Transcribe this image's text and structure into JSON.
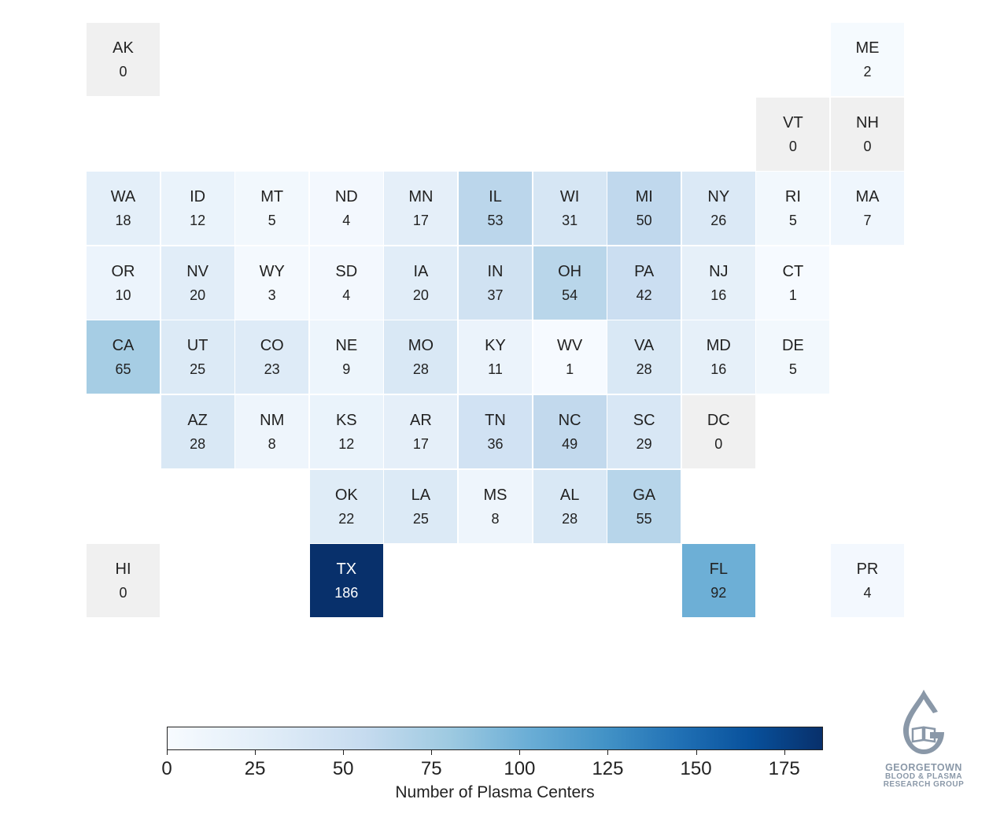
{
  "chart_data": {
    "type": "heatmap",
    "tiles": [
      {
        "state": "AK",
        "value": 0,
        "row": 0,
        "col": 0
      },
      {
        "state": "ME",
        "value": 2,
        "row": 0,
        "col": 10
      },
      {
        "state": "VT",
        "value": 0,
        "row": 1,
        "col": 9
      },
      {
        "state": "NH",
        "value": 0,
        "row": 1,
        "col": 10
      },
      {
        "state": "WA",
        "value": 18,
        "row": 2,
        "col": 0
      },
      {
        "state": "ID",
        "value": 12,
        "row": 2,
        "col": 1
      },
      {
        "state": "MT",
        "value": 5,
        "row": 2,
        "col": 2
      },
      {
        "state": "ND",
        "value": 4,
        "row": 2,
        "col": 3
      },
      {
        "state": "MN",
        "value": 17,
        "row": 2,
        "col": 4
      },
      {
        "state": "IL",
        "value": 53,
        "row": 2,
        "col": 5
      },
      {
        "state": "WI",
        "value": 31,
        "row": 2,
        "col": 6
      },
      {
        "state": "MI",
        "value": 50,
        "row": 2,
        "col": 7
      },
      {
        "state": "NY",
        "value": 26,
        "row": 2,
        "col": 8
      },
      {
        "state": "RI",
        "value": 5,
        "row": 2,
        "col": 9
      },
      {
        "state": "MA",
        "value": 7,
        "row": 2,
        "col": 10
      },
      {
        "state": "OR",
        "value": 10,
        "row": 3,
        "col": 0
      },
      {
        "state": "NV",
        "value": 20,
        "row": 3,
        "col": 1
      },
      {
        "state": "WY",
        "value": 3,
        "row": 3,
        "col": 2
      },
      {
        "state": "SD",
        "value": 4,
        "row": 3,
        "col": 3
      },
      {
        "state": "IA",
        "value": 20,
        "row": 3,
        "col": 4
      },
      {
        "state": "IN",
        "value": 37,
        "row": 3,
        "col": 5
      },
      {
        "state": "OH",
        "value": 54,
        "row": 3,
        "col": 6
      },
      {
        "state": "PA",
        "value": 42,
        "row": 3,
        "col": 7
      },
      {
        "state": "NJ",
        "value": 16,
        "row": 3,
        "col": 8
      },
      {
        "state": "CT",
        "value": 1,
        "row": 3,
        "col": 9
      },
      {
        "state": "CA",
        "value": 65,
        "row": 4,
        "col": 0
      },
      {
        "state": "UT",
        "value": 25,
        "row": 4,
        "col": 1
      },
      {
        "state": "CO",
        "value": 23,
        "row": 4,
        "col": 2
      },
      {
        "state": "NE",
        "value": 9,
        "row": 4,
        "col": 3
      },
      {
        "state": "MO",
        "value": 28,
        "row": 4,
        "col": 4
      },
      {
        "state": "KY",
        "value": 11,
        "row": 4,
        "col": 5
      },
      {
        "state": "WV",
        "value": 1,
        "row": 4,
        "col": 6
      },
      {
        "state": "VA",
        "value": 28,
        "row": 4,
        "col": 7
      },
      {
        "state": "MD",
        "value": 16,
        "row": 4,
        "col": 8
      },
      {
        "state": "DE",
        "value": 5,
        "row": 4,
        "col": 9
      },
      {
        "state": "AZ",
        "value": 28,
        "row": 5,
        "col": 1
      },
      {
        "state": "NM",
        "value": 8,
        "row": 5,
        "col": 2
      },
      {
        "state": "KS",
        "value": 12,
        "row": 5,
        "col": 3
      },
      {
        "state": "AR",
        "value": 17,
        "row": 5,
        "col": 4
      },
      {
        "state": "TN",
        "value": 36,
        "row": 5,
        "col": 5
      },
      {
        "state": "NC",
        "value": 49,
        "row": 5,
        "col": 6
      },
      {
        "state": "SC",
        "value": 29,
        "row": 5,
        "col": 7
      },
      {
        "state": "DC",
        "value": 0,
        "row": 5,
        "col": 8
      },
      {
        "state": "OK",
        "value": 22,
        "row": 6,
        "col": 3
      },
      {
        "state": "LA",
        "value": 25,
        "row": 6,
        "col": 4
      },
      {
        "state": "MS",
        "value": 8,
        "row": 6,
        "col": 5
      },
      {
        "state": "AL",
        "value": 28,
        "row": 6,
        "col": 6
      },
      {
        "state": "GA",
        "value": 55,
        "row": 6,
        "col": 7
      },
      {
        "state": "HI",
        "value": 0,
        "row": 7,
        "col": 0
      },
      {
        "state": "TX",
        "value": 186,
        "row": 7,
        "col": 3
      },
      {
        "state": "FL",
        "value": 92,
        "row": 7,
        "col": 8
      },
      {
        "state": "PR",
        "value": 4,
        "row": 7,
        "col": 10
      }
    ],
    "zero_color": "#f0f0f0",
    "colorscale": [
      "#f7fbff",
      "#deebf7",
      "#c6dbef",
      "#9ecae1",
      "#6baed6",
      "#4292c6",
      "#2171b5",
      "#08519c",
      "#08306b"
    ],
    "vmin": 0,
    "vmax": 186,
    "colorbar": {
      "ticks": [
        0,
        25,
        50,
        75,
        100,
        125,
        150,
        175
      ],
      "tick_labels": [
        "0",
        "25",
        "50",
        "75",
        "100",
        "125",
        "150",
        "175"
      ],
      "label": "Number of Plasma Centers"
    }
  },
  "logo": {
    "line1": "GEORGETOWN",
    "line2": "BLOOD & PLASMA",
    "line3": "RESEARCH GROUP"
  }
}
